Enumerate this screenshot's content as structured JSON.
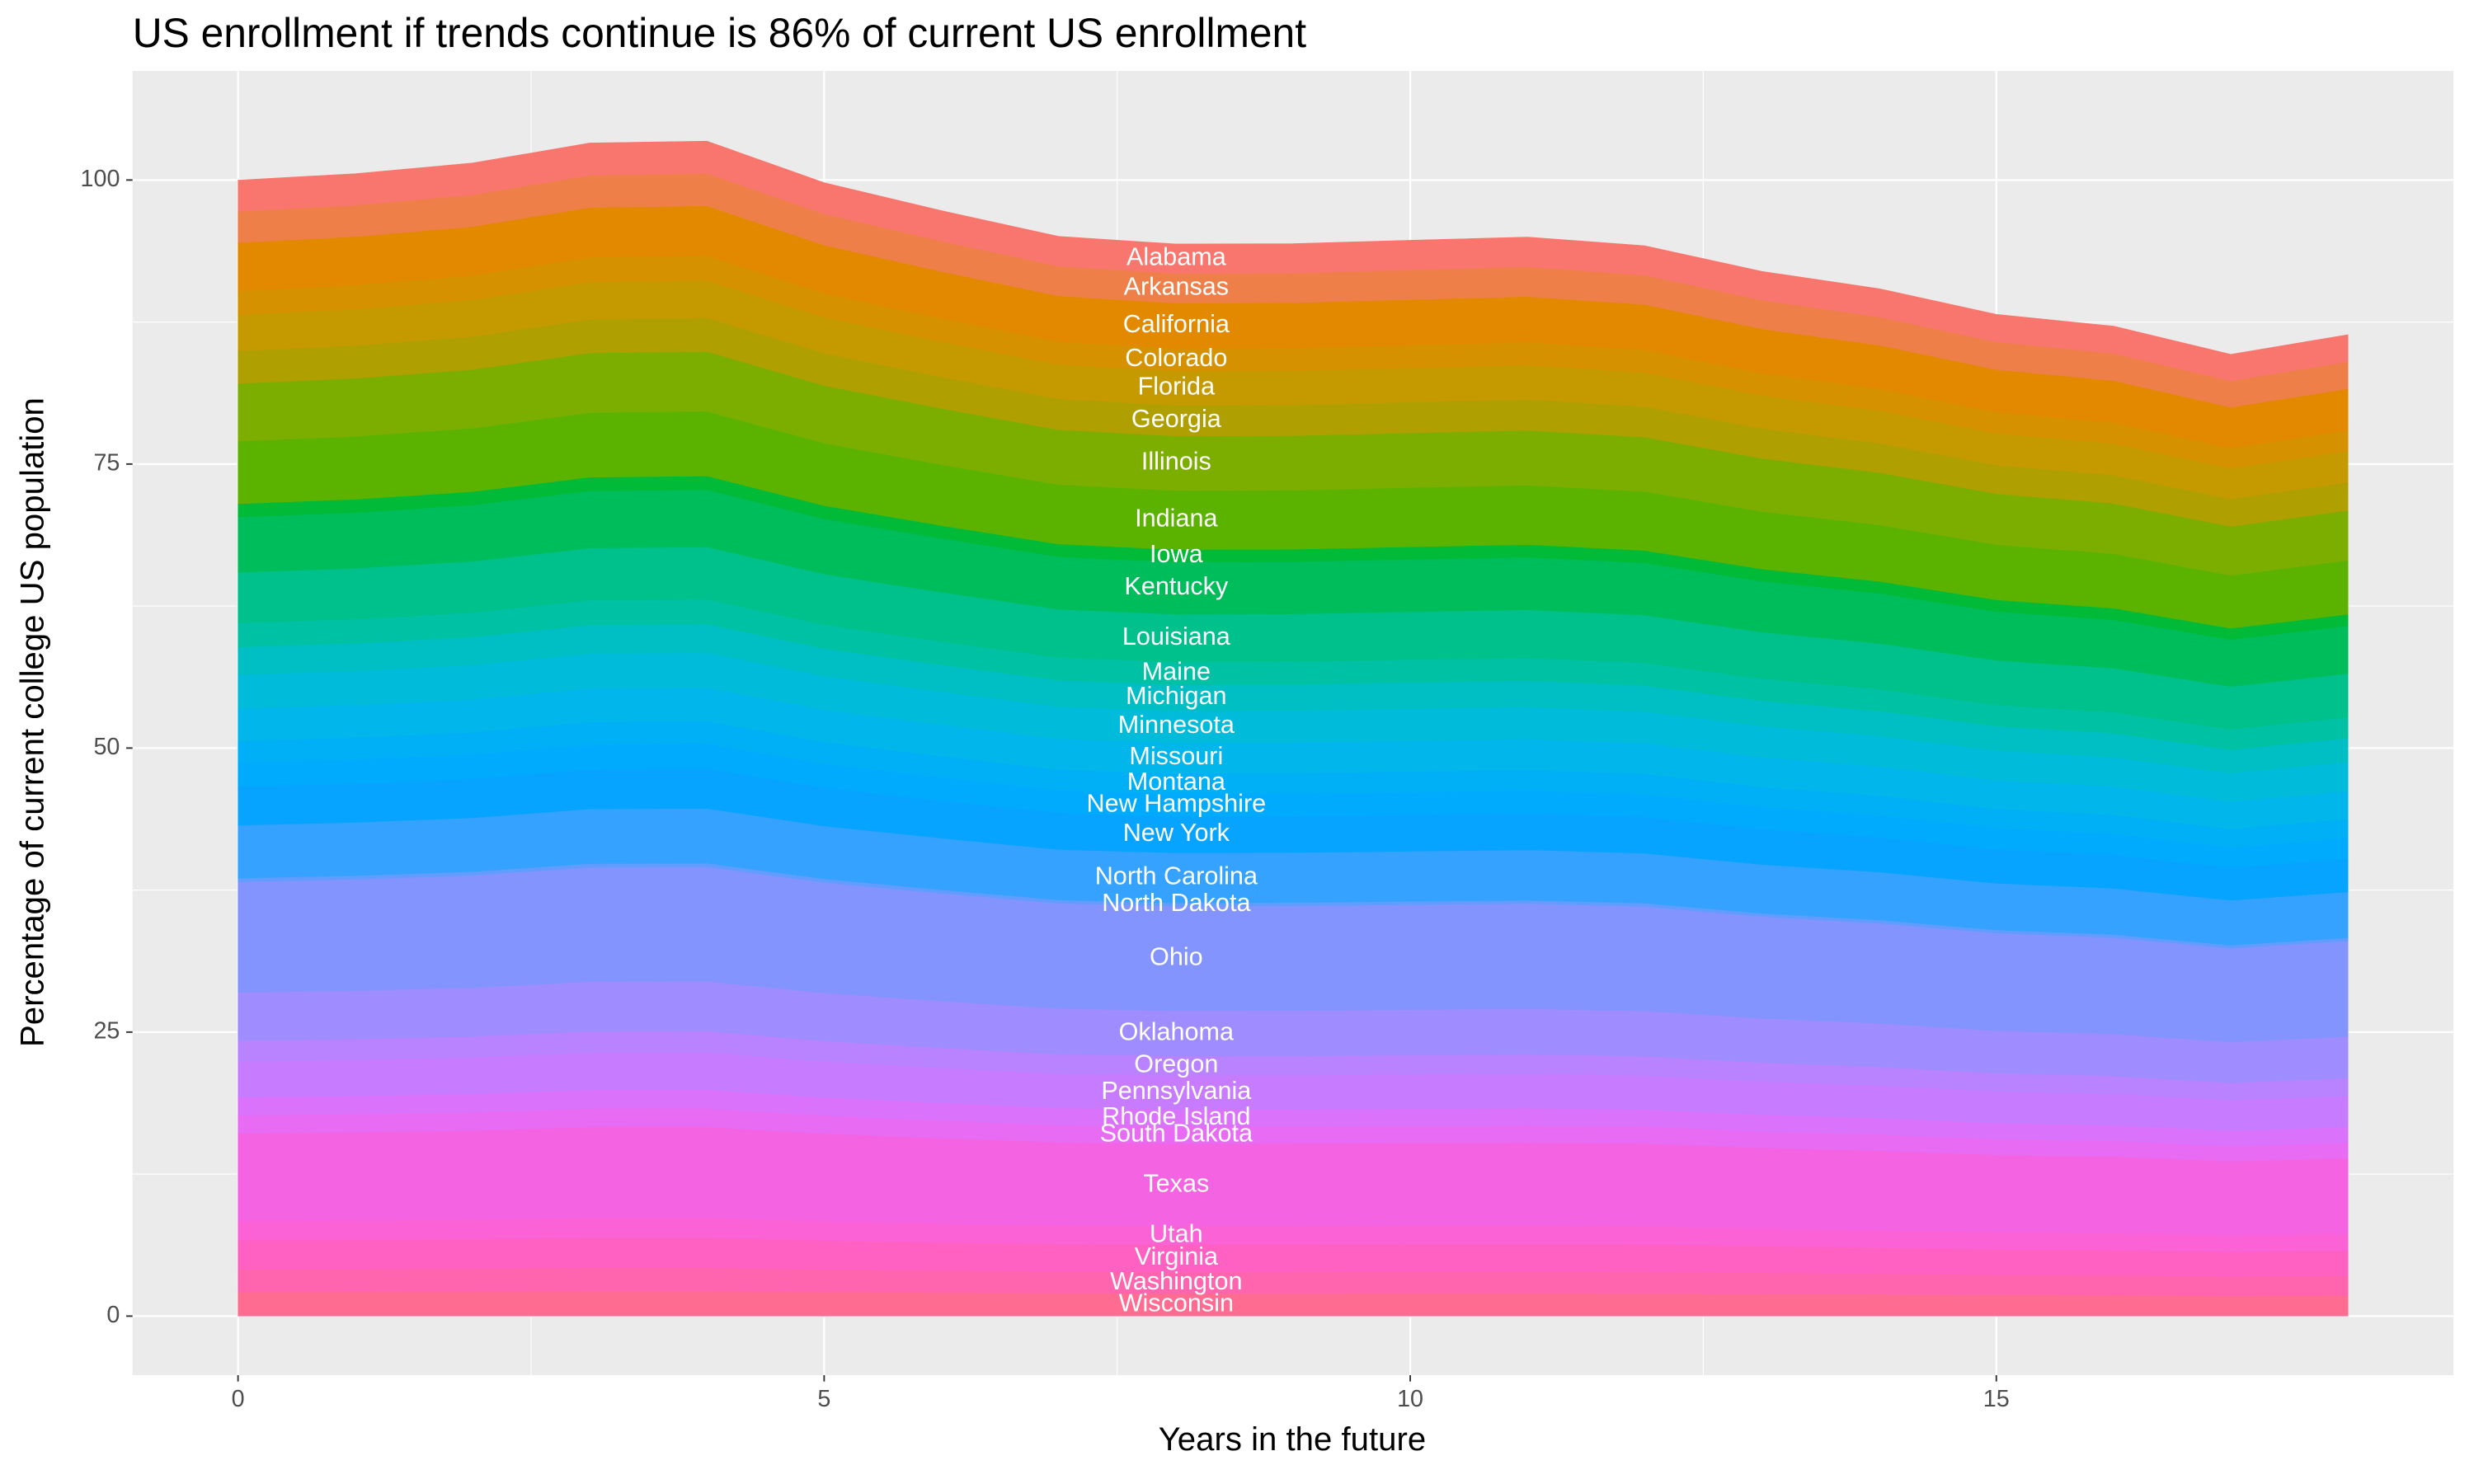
{
  "chart_data": {
    "type": "area",
    "title": "US enrollment if trends continue is 86% of current US enrollment",
    "xlabel": "Years in the future",
    "ylabel": "Percentage of current college US population",
    "x": [
      0,
      1,
      2,
      3,
      4,
      5,
      6,
      7,
      8,
      9,
      10,
      11,
      12,
      13,
      14,
      15,
      16,
      17,
      18
    ],
    "xlim": [
      -0.9,
      18.9
    ],
    "ylim": [
      -5.2,
      109.6
    ],
    "xticks": [
      0,
      5,
      10,
      15
    ],
    "yticks": [
      0,
      25,
      50,
      75,
      100
    ],
    "grid": true,
    "series": [
      {
        "name": "Alabama",
        "color": "#F8766D",
        "values": [
          2.75,
          2.77,
          2.8,
          2.84,
          2.85,
          2.75,
          2.68,
          2.62,
          2.6,
          2.6,
          2.61,
          2.62,
          2.59,
          2.53,
          2.49,
          2.43,
          2.4,
          2.33,
          2.38
        ]
      },
      {
        "name": "Arkansas",
        "color": "#EF7F49",
        "values": [
          2.75,
          2.77,
          2.8,
          2.84,
          2.85,
          2.75,
          2.68,
          2.62,
          2.6,
          2.6,
          2.61,
          2.62,
          2.59,
          2.53,
          2.49,
          2.43,
          2.4,
          2.33,
          2.38
        ]
      },
      {
        "name": "California",
        "color": "#E38900",
        "values": [
          4.24,
          4.26,
          4.3,
          4.38,
          4.38,
          4.23,
          4.12,
          4.03,
          4.0,
          4.0,
          4.01,
          4.02,
          3.99,
          3.9,
          3.83,
          3.74,
          3.69,
          3.59,
          3.66
        ]
      },
      {
        "name": "Colorado",
        "color": "#D59100",
        "values": [
          2.12,
          2.13,
          2.15,
          2.19,
          2.19,
          2.11,
          2.06,
          2.01,
          2.0,
          2.0,
          2.01,
          2.01,
          2.0,
          1.95,
          1.92,
          1.87,
          1.85,
          1.79,
          1.83
        ]
      },
      {
        "name": "Florida",
        "color": "#C49A00",
        "values": [
          3.18,
          3.2,
          3.23,
          3.28,
          3.29,
          3.17,
          3.09,
          3.02,
          3.0,
          3.0,
          3.01,
          3.02,
          2.99,
          2.92,
          2.87,
          2.8,
          2.77,
          2.69,
          2.75
        ]
      },
      {
        "name": "Georgia",
        "color": "#B09F00",
        "values": [
          2.86,
          2.88,
          2.9,
          2.95,
          2.96,
          2.85,
          2.78,
          2.72,
          2.7,
          2.7,
          2.71,
          2.72,
          2.69,
          2.63,
          2.59,
          2.52,
          2.49,
          2.42,
          2.47
        ]
      },
      {
        "name": "Illinois",
        "color": "#7CAE00",
        "values": [
          5.08,
          5.11,
          5.16,
          5.25,
          5.26,
          5.07,
          4.95,
          4.83,
          4.8,
          4.8,
          4.81,
          4.83,
          4.79,
          4.68,
          4.6,
          4.48,
          4.43,
          4.31,
          4.39
        ]
      },
      {
        "name": "Indiana",
        "color": "#5BB300",
        "values": [
          5.51,
          5.54,
          5.59,
          5.69,
          5.7,
          5.5,
          5.36,
          5.24,
          5.19,
          5.2,
          5.22,
          5.23,
          5.19,
          5.06,
          4.98,
          4.86,
          4.8,
          4.66,
          4.76
        ]
      },
      {
        "name": "Iowa",
        "color": "#00BA38",
        "values": [
          1.16,
          1.17,
          1.18,
          1.2,
          1.21,
          1.16,
          1.13,
          1.11,
          1.1,
          1.1,
          1.1,
          1.11,
          1.1,
          1.07,
          1.05,
          1.03,
          1.02,
          0.99,
          1.01
        ]
      },
      {
        "name": "Kentucky",
        "color": "#00BD5C",
        "values": [
          4.87,
          4.9,
          4.95,
          5.03,
          5.04,
          4.86,
          4.74,
          4.63,
          4.6,
          4.6,
          4.61,
          4.63,
          4.59,
          4.48,
          4.41,
          4.3,
          4.25,
          4.13,
          4.21
        ]
      },
      {
        "name": "Louisiana",
        "color": "#00C08B",
        "values": [
          4.45,
          4.47,
          4.52,
          4.59,
          4.6,
          4.44,
          4.33,
          4.23,
          4.2,
          4.2,
          4.21,
          4.23,
          4.19,
          4.09,
          4.02,
          3.92,
          3.88,
          3.77,
          3.84
        ]
      },
      {
        "name": "Maine",
        "color": "#00C1A3",
        "values": [
          2.12,
          2.13,
          2.15,
          2.19,
          2.19,
          2.11,
          2.06,
          2.01,
          2.0,
          2.0,
          2.01,
          2.01,
          2.0,
          1.95,
          1.92,
          1.87,
          1.85,
          1.79,
          1.83
        ]
      },
      {
        "name": "Michigan",
        "color": "#00BFC4",
        "values": [
          2.44,
          2.45,
          2.47,
          2.52,
          2.52,
          2.43,
          2.37,
          2.32,
          2.3,
          2.3,
          2.31,
          2.31,
          2.3,
          2.24,
          2.2,
          2.15,
          2.12,
          2.06,
          2.1
        ]
      },
      {
        "name": "Minnesota",
        "color": "#00BBDA",
        "values": [
          2.97,
          2.98,
          3.01,
          3.06,
          3.07,
          2.96,
          2.89,
          2.82,
          2.8,
          2.8,
          2.81,
          2.82,
          2.79,
          2.73,
          2.68,
          2.62,
          2.58,
          2.51,
          2.56
        ]
      },
      {
        "name": "Missouri",
        "color": "#00B6EB",
        "values": [
          2.86,
          2.88,
          2.9,
          2.95,
          2.96,
          2.85,
          2.78,
          2.72,
          2.7,
          2.7,
          2.71,
          2.72,
          2.69,
          2.63,
          2.59,
          2.52,
          2.49,
          2.42,
          2.47
        ]
      },
      {
        "name": "Montana",
        "color": "#00B0F6",
        "values": [
          1.91,
          1.92,
          1.94,
          1.97,
          1.97,
          1.9,
          1.86,
          1.81,
          1.8,
          1.8,
          1.81,
          1.81,
          1.8,
          1.75,
          1.72,
          1.68,
          1.66,
          1.61,
          1.65
        ]
      },
      {
        "name": "New Hampshire",
        "color": "#00ABFD",
        "values": [
          2.12,
          2.13,
          2.15,
          2.19,
          2.19,
          2.11,
          2.06,
          2.01,
          2.0,
          2.0,
          2.01,
          2.01,
          2.0,
          1.95,
          1.92,
          1.87,
          1.85,
          1.79,
          1.83
        ]
      },
      {
        "name": "New York",
        "color": "#06A4FF",
        "values": [
          3.39,
          3.41,
          3.44,
          3.5,
          3.51,
          3.38,
          3.3,
          3.22,
          3.2,
          3.2,
          3.21,
          3.22,
          3.19,
          3.12,
          3.07,
          2.99,
          2.95,
          2.87,
          2.93
        ]
      },
      {
        "name": "North Carolina",
        "color": "#35A2FF",
        "values": [
          4.66,
          4.69,
          4.73,
          4.81,
          4.82,
          4.65,
          4.54,
          4.43,
          4.4,
          4.4,
          4.41,
          4.43,
          4.39,
          4.29,
          4.22,
          4.11,
          4.06,
          3.95,
          4.03
        ]
      },
      {
        "name": "North Dakota",
        "color": "#619CFF",
        "values": [
          0.32,
          0.32,
          0.32,
          0.33,
          0.33,
          0.32,
          0.31,
          0.3,
          0.3,
          0.3,
          0.3,
          0.3,
          0.3,
          0.29,
          0.29,
          0.28,
          0.28,
          0.27,
          0.27
        ]
      },
      {
        "name": "Ohio",
        "color": "#8494FF",
        "values": [
          9.74,
          9.8,
          9.89,
          10.06,
          10.08,
          9.72,
          9.49,
          9.26,
          9.19,
          9.2,
          9.23,
          9.26,
          9.18,
          8.96,
          8.81,
          8.59,
          8.49,
          8.25,
          8.42
        ]
      },
      {
        "name": "Oklahoma",
        "color": "#9F8CFF",
        "values": [
          4.24,
          4.26,
          4.3,
          4.38,
          4.38,
          4.23,
          4.12,
          4.03,
          4.0,
          4.0,
          4.01,
          4.02,
          3.99,
          3.9,
          3.83,
          3.74,
          3.69,
          3.59,
          3.66
        ]
      },
      {
        "name": "Oregon",
        "color": "#B983FF",
        "values": [
          1.8,
          1.81,
          1.83,
          1.86,
          1.86,
          1.8,
          1.75,
          1.71,
          1.7,
          1.7,
          1.71,
          1.71,
          1.7,
          1.66,
          1.63,
          1.59,
          1.57,
          1.52,
          1.56
        ]
      },
      {
        "name": "Pennsylvania",
        "color": "#C77CFF",
        "values": [
          3.18,
          3.2,
          3.23,
          3.28,
          3.29,
          3.17,
          3.09,
          3.02,
          3.0,
          3.0,
          3.01,
          3.02,
          2.99,
          2.92,
          2.87,
          2.8,
          2.77,
          2.69,
          2.75
        ]
      },
      {
        "name": "Rhode Island",
        "color": "#DB72FB",
        "values": [
          1.59,
          1.6,
          1.61,
          1.64,
          1.64,
          1.59,
          1.55,
          1.51,
          1.5,
          1.5,
          1.5,
          1.51,
          1.5,
          1.46,
          1.44,
          1.4,
          1.38,
          1.35,
          1.37
        ]
      },
      {
        "name": "South Dakota",
        "color": "#E76BF3",
        "values": [
          1.59,
          1.6,
          1.61,
          1.64,
          1.64,
          1.59,
          1.55,
          1.51,
          1.5,
          1.5,
          1.5,
          1.51,
          1.5,
          1.46,
          1.44,
          1.4,
          1.38,
          1.35,
          1.37
        ]
      },
      {
        "name": "Texas",
        "color": "#F464E2",
        "values": [
          7.73,
          7.77,
          7.85,
          7.99,
          8.0,
          7.72,
          7.53,
          7.35,
          7.29,
          7.3,
          7.32,
          7.34,
          7.29,
          7.11,
          6.99,
          6.82,
          6.74,
          6.55,
          6.68
        ]
      },
      {
        "name": "Utah",
        "color": "#FA62D5",
        "values": [
          1.69,
          1.7,
          1.72,
          1.75,
          1.75,
          1.69,
          1.65,
          1.61,
          1.6,
          1.6,
          1.6,
          1.61,
          1.6,
          1.56,
          1.53,
          1.49,
          1.48,
          1.44,
          1.46
        ]
      },
      {
        "name": "Virginia",
        "color": "#FF61C3",
        "values": [
          2.54,
          2.56,
          2.58,
          2.63,
          2.63,
          2.54,
          2.47,
          2.42,
          2.4,
          2.4,
          2.41,
          2.41,
          2.4,
          2.34,
          2.3,
          2.24,
          2.22,
          2.15,
          2.2
        ]
      },
      {
        "name": "Washington",
        "color": "#FF65AE",
        "values": [
          2.01,
          2.02,
          2.04,
          2.08,
          2.08,
          2.01,
          1.96,
          1.91,
          1.9,
          1.9,
          1.91,
          1.91,
          1.9,
          1.85,
          1.82,
          1.77,
          1.75,
          1.7,
          1.74
        ]
      },
      {
        "name": "Wisconsin",
        "color": "#FF6C91",
        "values": [
          2.12,
          2.13,
          2.15,
          2.19,
          2.19,
          2.11,
          2.06,
          2.01,
          2.0,
          2.0,
          2.01,
          2.01,
          2.0,
          1.95,
          1.92,
          1.87,
          1.85,
          1.79,
          1.83
        ]
      }
    ]
  }
}
